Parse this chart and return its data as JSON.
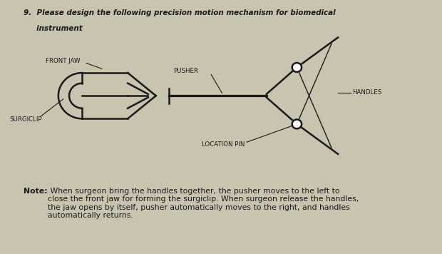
{
  "title_line1": "9.  Please design the following precision motion mechanism for biomedical",
  "title_line2": "     instrument",
  "note_bold": "Note:",
  "note_text": " When surgeon bring the handles together, the pusher moves to the left to\nclose the front jaw for forming the surgiclip. When surgeon release the handles,\nthe jaw opens by itself, pusher automatically moves to the right, and handles\nautomatically returns.",
  "labels": {
    "front_jaw": "FRONT JAW",
    "pusher": "PUSHER",
    "handles": "HANDLES",
    "surgiclip": "SURGICLIP",
    "location_pin": "LOCATION PIN"
  },
  "colors": {
    "lines": "#1a1a1a",
    "text": "#1a1a1a",
    "bg": "#c8c4b0"
  }
}
